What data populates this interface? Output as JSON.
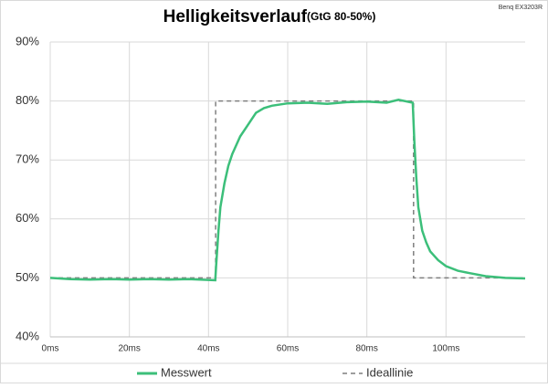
{
  "chart_data": {
    "type": "line",
    "title": "Helligkeitsverlauf",
    "subtitle": "(GtG 80-50%)",
    "annotation": "Benq EX3203R",
    "xlim": [
      0,
      120
    ],
    "ylim": [
      40,
      90
    ],
    "xticks": [
      {
        "value": 0,
        "label": "0ms"
      },
      {
        "value": 20,
        "label": "20ms"
      },
      {
        "value": 40,
        "label": "40ms"
      },
      {
        "value": 60,
        "label": "60ms"
      },
      {
        "value": 80,
        "label": "80ms"
      },
      {
        "value": 100,
        "label": "100ms"
      }
    ],
    "yticks": [
      {
        "value": 40,
        "label": "40%"
      },
      {
        "value": 50,
        "label": "50%"
      },
      {
        "value": 60,
        "label": "60%"
      },
      {
        "value": 70,
        "label": "70%"
      },
      {
        "value": 80,
        "label": "80%"
      },
      {
        "value": 90,
        "label": "90%"
      }
    ],
    "grid": true,
    "legend": "bottom",
    "series": [
      {
        "name": "Messwert",
        "color": "#3cbf7a",
        "dashed": false,
        "x": [
          0,
          5,
          10,
          15,
          20,
          25,
          30,
          35,
          41.7,
          41.9,
          42.5,
          43,
          44,
          45,
          46,
          48,
          50,
          52,
          54,
          56,
          60,
          65,
          70,
          75,
          80,
          85,
          88,
          91.6,
          92,
          92.5,
          93,
          94,
          95,
          96,
          98,
          100,
          103,
          106,
          110,
          115,
          120
        ],
        "values": [
          50,
          49.8,
          49.7,
          49.8,
          49.7,
          49.8,
          49.7,
          49.8,
          49.6,
          52,
          58,
          62,
          66,
          69,
          71,
          74,
          76,
          78,
          78.8,
          79.2,
          79.6,
          79.7,
          79.5,
          79.8,
          79.9,
          79.7,
          80.2,
          79.7,
          73,
          67,
          62,
          58,
          56,
          54.5,
          53,
          52,
          51.2,
          50.8,
          50.3,
          50,
          49.9
        ]
      },
      {
        "name": "Ideallinie",
        "color": "#7f7f7f",
        "dashed": true,
        "x": [
          0,
          41.8,
          41.8,
          91.8,
          91.8,
          120
        ],
        "values": [
          50,
          50,
          80,
          80,
          50,
          50
        ]
      }
    ]
  }
}
